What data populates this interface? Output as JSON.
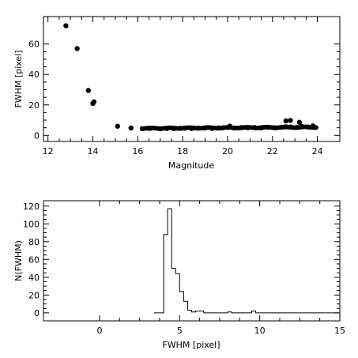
{
  "chart_data": [
    {
      "type": "scatter",
      "title": "",
      "xlabel": "Magnitude",
      "ylabel": "FWHM [pixel]",
      "xlim": [
        11.8,
        25.0
      ],
      "ylim": [
        -4,
        78
      ],
      "xticks": [
        12,
        14,
        16,
        18,
        20,
        22,
        24
      ],
      "yticks": [
        0,
        20,
        40,
        60
      ],
      "grid": false,
      "x": [
        12.8,
        13.3,
        13.8,
        14.0,
        14.05,
        15.1,
        15.7,
        16.2,
        16.5,
        16.6,
        17.0,
        17.3,
        17.6,
        17.9,
        18.1,
        18.4,
        18.7,
        19.0,
        19.3,
        19.6,
        19.8,
        20.0,
        20.3,
        20.6,
        20.9,
        21.2,
        21.5,
        21.8,
        22.1,
        22.4,
        22.6,
        22.8,
        23.1,
        23.3,
        23.6,
        23.9,
        22.6,
        22.8,
        23.2,
        23.8,
        20.1
      ],
      "y": [
        72,
        57,
        29.5,
        21,
        22,
        6,
        4.8,
        4.4,
        4.6,
        4.7,
        4.3,
        4.5,
        4.4,
        4.6,
        4.7,
        4.5,
        4.8,
        4.9,
        4.6,
        4.9,
        5.0,
        5.2,
        4.8,
        5.1,
        5.0,
        5.2,
        4.9,
        5.3,
        5.0,
        5.4,
        5.6,
        5.5,
        5.3,
        6.0,
        5.4,
        5.2,
        9.5,
        9.8,
        8.6,
        6.2,
        6.1
      ]
    },
    {
      "type": "histogram",
      "title": "",
      "xlabel": "FWHM [pixel]",
      "ylabel": "N(FWHM)",
      "xlim": [
        -3.5,
        15
      ],
      "ylim": [
        -9,
        126
      ],
      "xticks": [
        0,
        5,
        10,
        15
      ],
      "yticks": [
        0,
        20,
        40,
        60,
        80,
        100,
        120
      ],
      "grid": false,
      "bin_edges": [
        3.4,
        4.0,
        4.25,
        4.5,
        4.75,
        5.0,
        5.25,
        5.5,
        5.75,
        6.0,
        6.5,
        7.0,
        8.0,
        8.25,
        8.5,
        9.5,
        9.75,
        10.0,
        15.0
      ],
      "counts": [
        0,
        88,
        117,
        50,
        44,
        24,
        13,
        3,
        1,
        2,
        0,
        0,
        1,
        0,
        0,
        2,
        0,
        0
      ]
    }
  ]
}
